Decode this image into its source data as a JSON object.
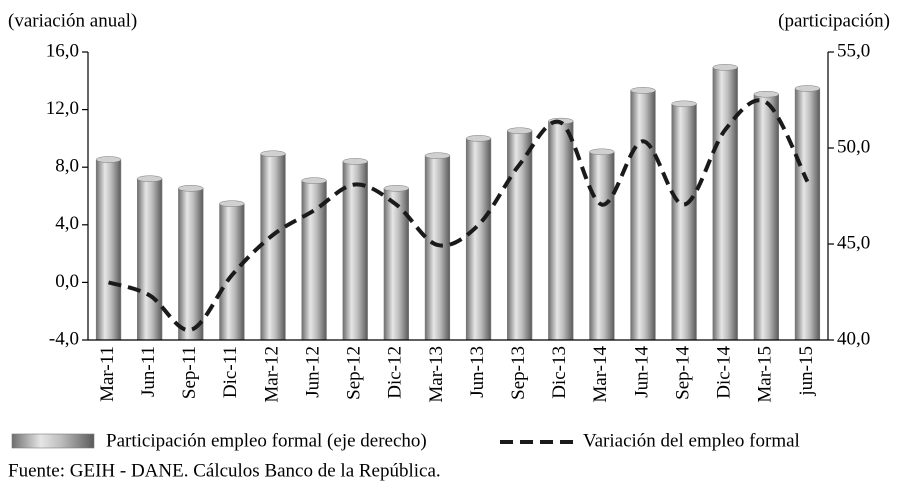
{
  "chart_data": {
    "type": "bar-line",
    "categories": [
      "Mar-11",
      "Jun-11",
      "Sep-11",
      "Dic-11",
      "Mar-12",
      "Jun-12",
      "Sep-12",
      "Dic-12",
      "Mar-13",
      "Jun-13",
      "Sep-13",
      "Dic-13",
      "Mar-14",
      "Jun-14",
      "Sep-14",
      "Dic-14",
      "Mar-15",
      "jun-15"
    ],
    "y_label": "(variación anual)",
    "y2_label": "(participación)",
    "ylim": [
      -4,
      16
    ],
    "yticks": [
      {
        "value": -4,
        "label": "-4,0"
      },
      {
        "value": 0,
        "label": "0,0"
      },
      {
        "value": 4,
        "label": "4,0"
      },
      {
        "value": 8,
        "label": "8,0"
      },
      {
        "value": 12,
        "label": "12,0"
      },
      {
        "value": 16,
        "label": "16,0"
      }
    ],
    "y2lim": [
      40,
      55
    ],
    "y2ticks": [
      {
        "value": 40,
        "label": "40,0"
      },
      {
        "value": 45,
        "label": "45,0"
      },
      {
        "value": 50,
        "label": "50,0"
      },
      {
        "value": 55,
        "label": "55,0"
      }
    ],
    "series": [
      {
        "name": "Participación empleo formal (eje derecho)",
        "type": "bar",
        "axis": "y2",
        "color": "#a6a6a6",
        "values": [
          49.4,
          48.4,
          47.9,
          47.1,
          49.7,
          48.3,
          49.3,
          47.9,
          49.6,
          50.5,
          50.9,
          51.4,
          49.8,
          53.0,
          52.3,
          54.2,
          52.8,
          53.1
        ]
      },
      {
        "name": "Variación del empleo formal",
        "type": "line",
        "axis": "y",
        "color": "#1a1a1a",
        "values": [
          0.0,
          -0.9,
          -3.3,
          0.5,
          3.3,
          5.0,
          6.8,
          5.4,
          2.6,
          4.0,
          8.2,
          11.1,
          5.4,
          9.8,
          5.4,
          10.6,
          12.5,
          7.0
        ]
      }
    ],
    "source": "Fuente: GEIH - DANE. Cálculos Banco de la República."
  }
}
